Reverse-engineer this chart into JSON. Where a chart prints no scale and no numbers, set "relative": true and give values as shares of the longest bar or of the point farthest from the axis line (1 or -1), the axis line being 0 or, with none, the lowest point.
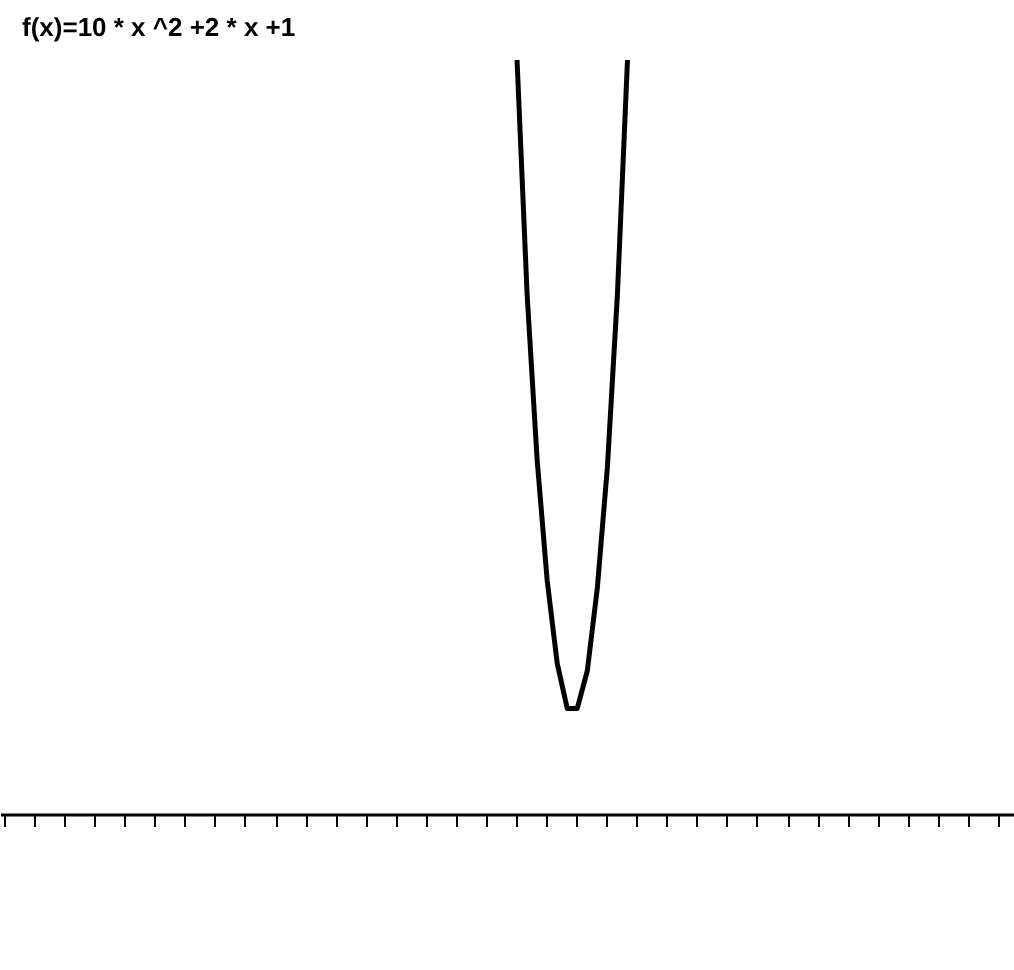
{
  "chart_data": {
    "type": "line",
    "title": "f(x)=10 * x ^2 +2 * x +1",
    "relative": true,
    "grid": false,
    "legend": false,
    "marker": "none",
    "line_style": "solid",
    "categories": [
      null,
      null,
      null,
      null,
      null,
      null,
      null,
      null,
      null,
      null,
      null,
      null,
      null,
      null,
      null,
      null,
      null,
      null,
      null,
      null,
      null,
      null,
      null,
      null,
      null,
      null,
      null,
      null,
      null,
      null,
      null,
      null,
      null,
      null,
      null,
      null,
      null,
      null,
      null,
      null,
      null,
      null,
      null,
      null,
      null,
      null,
      null,
      null,
      null,
      null,
      null,
      null,
      null,
      null,
      null,
      null,
      null,
      null,
      null,
      null,
      null,
      null,
      null,
      null,
      null,
      null,
      null,
      null,
      null,
      null,
      null,
      null,
      null,
      null,
      null,
      null,
      null,
      null,
      null,
      null,
      null,
      null,
      null,
      null,
      null,
      null,
      null,
      null,
      null,
      null,
      null,
      null,
      null,
      null,
      null,
      null,
      null,
      null,
      null,
      null,
      null
    ],
    "series": [
      {
        "color": "#000000",
        "values": [
          null,
          null,
          null,
          null,
          null,
          null,
          null,
          null,
          null,
          null,
          null,
          null,
          null,
          null,
          null,
          null,
          null,
          null,
          null,
          null,
          null,
          null,
          null,
          null,
          null,
          null,
          null,
          null,
          null,
          null,
          null,
          null,
          null,
          null,
          null,
          null,
          null,
          null,
          null,
          null,
          null,
          null,
          null,
          null,
          null,
          null,
          null,
          null,
          null,
          null,
          null,
          1.0,
          0.69,
          0.47,
          0.31,
          0.2,
          0.14,
          0.14,
          0.19,
          0.3,
          0.46,
          0.69,
          1.0,
          null,
          null,
          null,
          null,
          null,
          null,
          null,
          null,
          null,
          null,
          null,
          null,
          null,
          null,
          null,
          null,
          null,
          null,
          null,
          null,
          null,
          null,
          null,
          null,
          null,
          null,
          null,
          null,
          null,
          null,
          null,
          null,
          null,
          null,
          null,
          null,
          null,
          null
        ]
      }
    ]
  }
}
